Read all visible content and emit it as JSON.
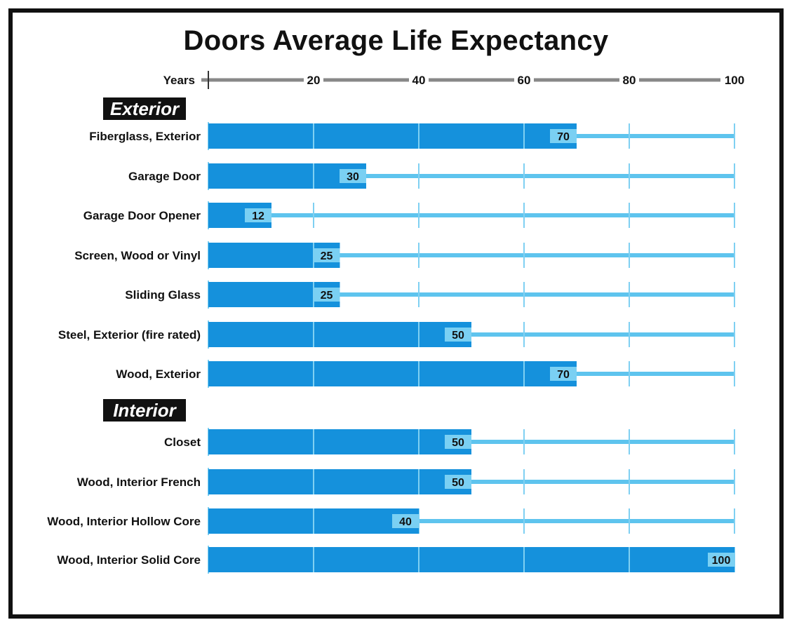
{
  "title": "Doors Average Life Expectancy",
  "colors": {
    "bar": "#1591dc",
    "track": "#5ec4ee",
    "label_box": "#7ad0f3",
    "axis": "#888888",
    "grid": "#7fd0f2",
    "section_bg": "#111111",
    "section_text": "#ffffff"
  },
  "chart_data": {
    "type": "bar",
    "orientation": "horizontal",
    "title": "Doors Average Life Expectancy",
    "xlabel": "Years",
    "xlim": [
      0,
      100
    ],
    "x_ticks": [
      20,
      40,
      60,
      80,
      100
    ],
    "grid": true,
    "groups": [
      {
        "name": "Exterior",
        "categories": [
          "Fiberglass, Exterior",
          "Garage Door",
          "Garage Door Opener",
          "Screen, Wood or Vinyl",
          "Sliding Glass",
          "Steel, Exterior (fire rated)",
          "Wood, Exterior"
        ],
        "values": [
          70,
          30,
          12,
          25,
          25,
          50,
          70
        ]
      },
      {
        "name": "Interior",
        "categories": [
          "Closet",
          "Wood, Interior French",
          "Wood, Interior Hollow Core",
          "Wood, Interior Solid Core"
        ],
        "values": [
          50,
          50,
          40,
          100
        ]
      }
    ]
  }
}
